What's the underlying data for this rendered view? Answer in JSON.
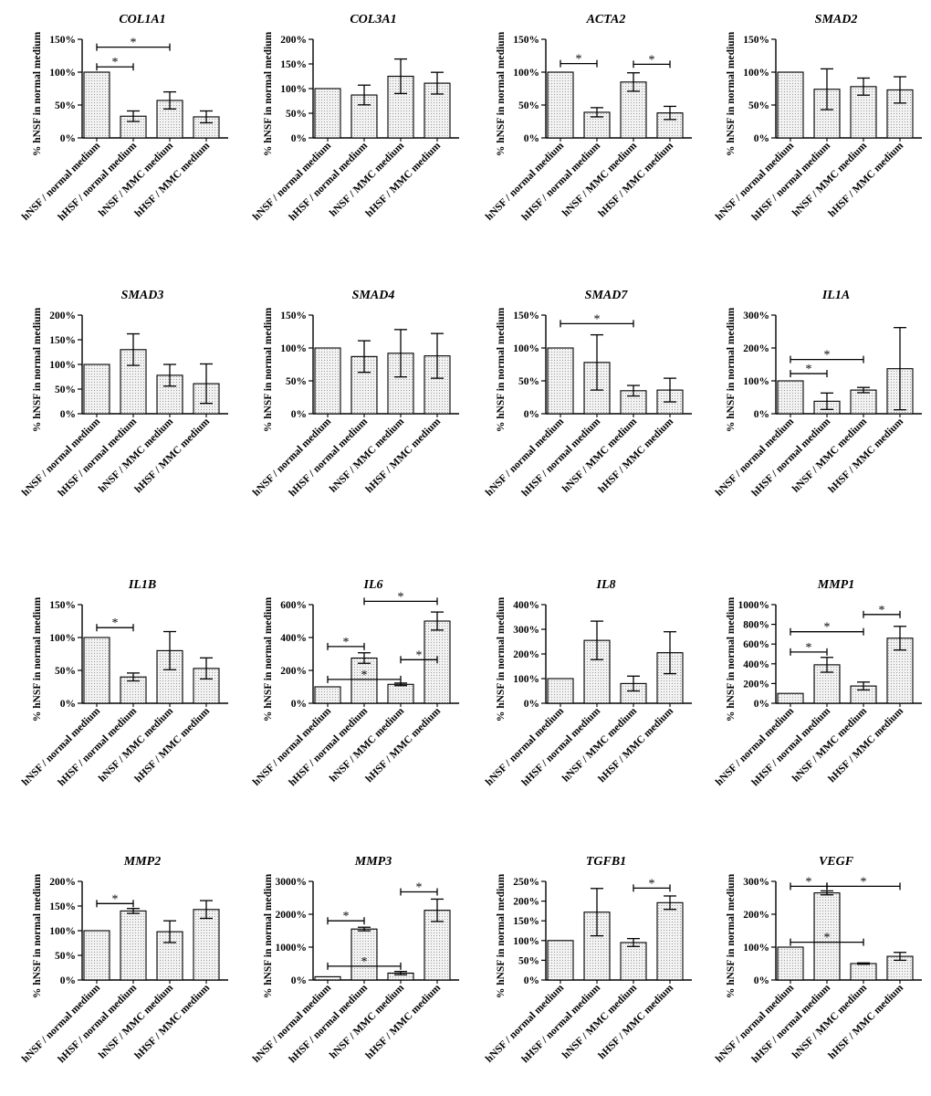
{
  "figure": {
    "categories": [
      "hNSF / normal medium",
      "hHSF / normal medium",
      "hNSF / MMC medium",
      "hHSF / MMC medium"
    ],
    "ylabel": "% hNSF in normal medium",
    "bar_fill": "#f2f2f2",
    "bar_stroke": "#000000"
  },
  "chart_data": [
    {
      "type": "bar",
      "title": "COL1A1",
      "ylim": [
        0,
        150
      ],
      "ticks": [
        "0%",
        "50%",
        "100%",
        "150%"
      ],
      "tick_values": [
        0,
        50,
        100,
        150
      ],
      "values": [
        100,
        33,
        57,
        32
      ],
      "errors": [
        0,
        8,
        13,
        9
      ],
      "significance": [
        {
          "from": 0,
          "to": 1,
          "y": 108,
          "label": "*"
        },
        {
          "from": 0,
          "to": 2,
          "y": 138,
          "label": "*"
        }
      ]
    },
    {
      "type": "bar",
      "title": "COL3A1",
      "ylim": [
        0,
        200
      ],
      "ticks": [
        "0%",
        "50%",
        "100%",
        "150%",
        "200%"
      ],
      "tick_values": [
        0,
        50,
        100,
        150,
        200
      ],
      "values": [
        100,
        87,
        125,
        111
      ],
      "errors": [
        0,
        20,
        35,
        22
      ],
      "significance": []
    },
    {
      "type": "bar",
      "title": "ACTA2",
      "ylim": [
        0,
        150
      ],
      "ticks": [
        "0%",
        "50%",
        "100%",
        "150%"
      ],
      "tick_values": [
        0,
        50,
        100,
        150
      ],
      "values": [
        100,
        39,
        85,
        38
      ],
      "errors": [
        0,
        7,
        14,
        10
      ],
      "significance": [
        {
          "from": 0,
          "to": 1,
          "y": 113,
          "label": "*"
        },
        {
          "from": 2,
          "to": 3,
          "y": 112,
          "label": "*"
        }
      ]
    },
    {
      "type": "bar",
      "title": "SMAD2",
      "ylim": [
        0,
        150
      ],
      "ticks": [
        "0%",
        "50%",
        "100%",
        "150%"
      ],
      "tick_values": [
        0,
        50,
        100,
        150
      ],
      "values": [
        100,
        74,
        78,
        73
      ],
      "errors": [
        0,
        31,
        13,
        20
      ],
      "significance": []
    },
    {
      "type": "bar",
      "title": "SMAD3",
      "ylim": [
        0,
        200
      ],
      "ticks": [
        "0%",
        "50%",
        "100%",
        "150%",
        "200%"
      ],
      "tick_values": [
        0,
        50,
        100,
        150,
        200
      ],
      "values": [
        100,
        130,
        78,
        61
      ],
      "errors": [
        0,
        32,
        22,
        40
      ],
      "significance": []
    },
    {
      "type": "bar",
      "title": "SMAD4",
      "ylim": [
        0,
        150
      ],
      "ticks": [
        "0%",
        "50%",
        "100%",
        "150%"
      ],
      "tick_values": [
        0,
        50,
        100,
        150
      ],
      "values": [
        100,
        87,
        92,
        88
      ],
      "errors": [
        0,
        24,
        36,
        34
      ],
      "significance": []
    },
    {
      "type": "bar",
      "title": "SMAD7",
      "ylim": [
        0,
        150
      ],
      "ticks": [
        "0%",
        "50%",
        "100%",
        "150%"
      ],
      "tick_values": [
        0,
        50,
        100,
        150
      ],
      "values": [
        100,
        78,
        35,
        36
      ],
      "errors": [
        0,
        42,
        8,
        18
      ],
      "significance": [
        {
          "from": 0,
          "to": 2,
          "y": 137,
          "label": "*"
        }
      ]
    },
    {
      "type": "bar",
      "title": "IL1A",
      "ylim": [
        0,
        300
      ],
      "ticks": [
        "0%",
        "100%",
        "200%",
        "300%"
      ],
      "tick_values": [
        0,
        100,
        200,
        300
      ],
      "values": [
        100,
        38,
        72,
        137
      ],
      "errors": [
        0,
        25,
        8,
        125
      ],
      "significance": [
        {
          "from": 0,
          "to": 1,
          "y": 122,
          "label": "*"
        },
        {
          "from": 0,
          "to": 2,
          "y": 165,
          "label": "*"
        }
      ]
    },
    {
      "type": "bar",
      "title": "IL1B",
      "ylim": [
        0,
        150
      ],
      "ticks": [
        "0%",
        "50%",
        "100%",
        "150%"
      ],
      "tick_values": [
        0,
        50,
        100,
        150
      ],
      "values": [
        100,
        40,
        80,
        53
      ],
      "errors": [
        0,
        6,
        29,
        16
      ],
      "significance": [
        {
          "from": 0,
          "to": 1,
          "y": 115,
          "label": "*"
        }
      ]
    },
    {
      "type": "bar",
      "title": "IL6",
      "ylim": [
        0,
        600
      ],
      "ticks": [
        "0%",
        "200%",
        "400%",
        "600%"
      ],
      "tick_values": [
        0,
        200,
        400,
        600
      ],
      "values": [
        100,
        275,
        115,
        500
      ],
      "errors": [
        0,
        32,
        8,
        55
      ],
      "significance": [
        {
          "from": 0,
          "to": 1,
          "y": 345,
          "label": "*"
        },
        {
          "from": 0,
          "to": 2,
          "y": 145,
          "label": "*"
        },
        {
          "from": 2,
          "to": 3,
          "y": 265,
          "label": "*"
        },
        {
          "from": 1,
          "to": 3,
          "y": 620,
          "label": "*"
        }
      ]
    },
    {
      "type": "bar",
      "title": "IL8",
      "ylim": [
        0,
        400
      ],
      "ticks": [
        "0%",
        "100%",
        "200%",
        "300%",
        "400%"
      ],
      "tick_values": [
        0,
        100,
        200,
        300,
        400
      ],
      "values": [
        100,
        255,
        80,
        205
      ],
      "errors": [
        0,
        78,
        30,
        85
      ],
      "significance": []
    },
    {
      "type": "bar",
      "title": "MMP1",
      "ylim": [
        0,
        1000
      ],
      "ticks": [
        "0%",
        "200%",
        "400%",
        "600%",
        "800%",
        "1000%"
      ],
      "tick_values": [
        0,
        200,
        400,
        600,
        800,
        1000
      ],
      "values": [
        100,
        390,
        175,
        660
      ],
      "errors": [
        0,
        75,
        40,
        120
      ],
      "significance": [
        {
          "from": 0,
          "to": 1,
          "y": 520,
          "label": "*"
        },
        {
          "from": 0,
          "to": 2,
          "y": 725,
          "label": "*"
        },
        {
          "from": 2,
          "to": 3,
          "y": 900,
          "label": "*"
        }
      ]
    },
    {
      "type": "bar",
      "title": "MMP2",
      "ylim": [
        0,
        200
      ],
      "ticks": [
        "0%",
        "50%",
        "100%",
        "150%",
        "200%"
      ],
      "tick_values": [
        0,
        50,
        100,
        150,
        200
      ],
      "values": [
        100,
        140,
        98,
        143
      ],
      "errors": [
        0,
        5,
        22,
        18
      ],
      "significance": [
        {
          "from": 0,
          "to": 1,
          "y": 155,
          "label": "*"
        }
      ]
    },
    {
      "type": "bar",
      "title": "MMP3",
      "ylim": [
        0,
        3000
      ],
      "ticks": [
        "0%",
        "1000%",
        "2000%",
        "3000%"
      ],
      "tick_values": [
        0,
        1000,
        2000,
        3000
      ],
      "values": [
        100,
        1550,
        210,
        2120
      ],
      "errors": [
        0,
        55,
        50,
        340
      ],
      "significance": [
        {
          "from": 0,
          "to": 1,
          "y": 1800,
          "label": "*"
        },
        {
          "from": 0,
          "to": 2,
          "y": 420,
          "label": "*"
        },
        {
          "from": 2,
          "to": 3,
          "y": 2680,
          "label": "*"
        }
      ]
    },
    {
      "type": "bar",
      "title": "TGFB1",
      "ylim": [
        0,
        250
      ],
      "ticks": [
        "0%",
        "50%",
        "100%",
        "150%",
        "200%",
        "250%"
      ],
      "tick_values": [
        0,
        50,
        100,
        150,
        200,
        250
      ],
      "values": [
        100,
        172,
        95,
        196
      ],
      "errors": [
        0,
        60,
        10,
        17
      ],
      "significance": [
        {
          "from": 2,
          "to": 3,
          "y": 233,
          "label": "*"
        }
      ]
    },
    {
      "type": "bar",
      "title": "VEGF",
      "ylim": [
        0,
        300
      ],
      "ticks": [
        "0%",
        "100%",
        "200%",
        "300%"
      ],
      "tick_values": [
        0,
        100,
        200,
        300
      ],
      "values": [
        100,
        265,
        50,
        72
      ],
      "errors": [
        0,
        6,
        2,
        12
      ],
      "significance": [
        {
          "from": 0,
          "to": 1,
          "y": 285,
          "label": "*"
        },
        {
          "from": 1,
          "to": 3,
          "y": 285,
          "label": "*"
        },
        {
          "from": 0,
          "to": 2,
          "y": 115,
          "label": "*"
        }
      ]
    }
  ]
}
